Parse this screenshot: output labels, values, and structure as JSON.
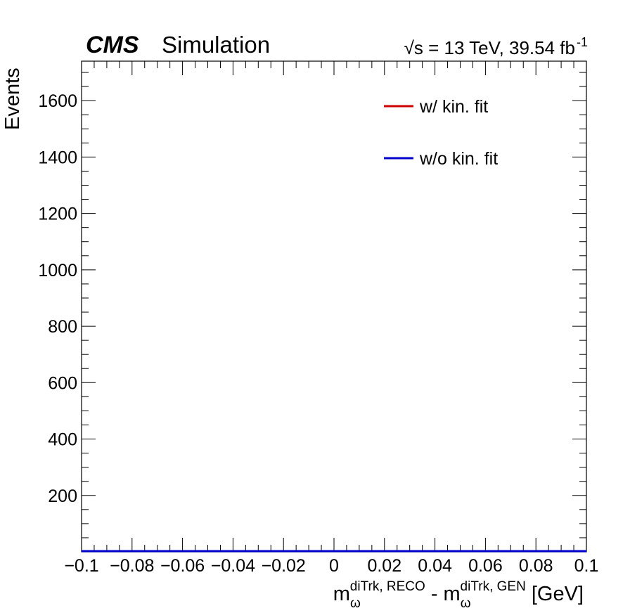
{
  "header": {
    "experiment": "CMS",
    "status": "Simulation",
    "energy": "√s = 13 TeV, 39.54 fb",
    "lumi_exponent": "-1"
  },
  "chart_data": {
    "type": "line",
    "xlabel": {
      "base": "m",
      "sub1": "ω",
      "sup1": "diTrk, RECO",
      "mid": " - m",
      "sub2": "ω",
      "sup2": "diTrk, GEN",
      "unit": " [GeV]"
    },
    "ylabel": "Events",
    "xlim": [
      -0.1,
      0.1
    ],
    "ylim": [
      0,
      1740
    ],
    "x_ticks": [
      -0.1,
      -0.08,
      -0.06,
      -0.04,
      -0.02,
      0,
      0.02,
      0.04,
      0.06,
      0.08,
      0.1
    ],
    "x_tick_labels": [
      "−0.1",
      "−0.08",
      "−0.06",
      "−0.04",
      "−0.02",
      "0",
      "0.02",
      "0.04",
      "0.06",
      "0.08",
      "0.1"
    ],
    "y_ticks": [
      200,
      400,
      600,
      800,
      1000,
      1200,
      1400,
      1600
    ],
    "y_tick_labels": [
      "200",
      "400",
      "600",
      "800",
      "1000",
      "1200",
      "1400",
      "1600"
    ],
    "x_minor_step": 0.005,
    "y_minor_step": 50,
    "grid": false,
    "legend_position": "top-right",
    "series": [
      {
        "name": "w/ kin. fit",
        "color": "#cc0000",
        "x": [
          -0.1,
          0.1
        ],
        "y": [
          0,
          0
        ]
      },
      {
        "name": "w/o kin. fit",
        "color": "#0000cc",
        "x": [
          -0.1,
          0.1
        ],
        "y": [
          0,
          0
        ]
      }
    ]
  }
}
